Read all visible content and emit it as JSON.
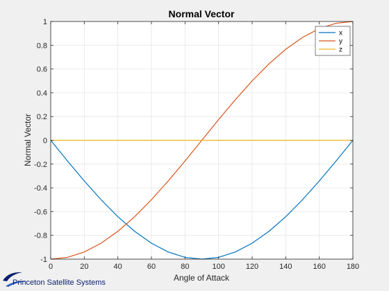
{
  "chart_data": {
    "type": "line",
    "title": "Normal Vector",
    "xlabel": "Angle of Attack",
    "ylabel": "Normal Vector",
    "xlim": [
      0,
      180
    ],
    "ylim": [
      -1,
      1
    ],
    "xticks": [
      0,
      20,
      40,
      60,
      80,
      100,
      120,
      140,
      160,
      180
    ],
    "yticks": [
      -1,
      -0.8,
      -0.6,
      -0.4,
      -0.2,
      0,
      0.2,
      0.4,
      0.6,
      0.8,
      1
    ],
    "grid": true,
    "legend_position": "top-right",
    "x": [
      0,
      10,
      20,
      30,
      40,
      50,
      60,
      70,
      80,
      90,
      100,
      110,
      120,
      130,
      140,
      150,
      160,
      170,
      180
    ],
    "series": [
      {
        "name": "x",
        "color": "#0072BD",
        "values": [
          0,
          -0.174,
          -0.342,
          -0.5,
          -0.643,
          -0.766,
          -0.866,
          -0.94,
          -0.985,
          -1,
          -0.985,
          -0.94,
          -0.866,
          -0.766,
          -0.643,
          -0.5,
          -0.342,
          -0.174,
          0
        ]
      },
      {
        "name": "y",
        "color": "#D95319",
        "values": [
          -1,
          -0.985,
          -0.94,
          -0.866,
          -0.766,
          -0.643,
          -0.5,
          -0.342,
          -0.174,
          0,
          0.174,
          0.342,
          0.5,
          0.643,
          0.766,
          0.866,
          0.94,
          0.985,
          1
        ]
      },
      {
        "name": "z",
        "color": "#EDB120",
        "values": [
          0,
          0,
          0,
          0,
          0,
          0,
          0,
          0,
          0,
          0,
          0,
          0,
          0,
          0,
          0,
          0,
          0,
          0,
          0
        ]
      }
    ]
  },
  "logo": {
    "text": "Princeton Satellite Systems"
  },
  "colors": {
    "background": "#f0f0f0",
    "axes": "#ffffff",
    "grid": "#e6e6e6",
    "logo": "#0a1e6e"
  }
}
